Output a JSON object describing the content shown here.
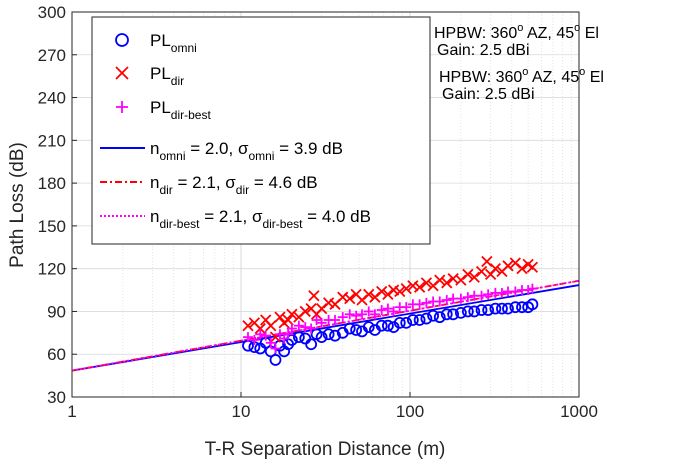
{
  "chart_data": {
    "type": "scatter",
    "xlabel": "T-R Separation Distance (m)",
    "ylabel": "Path Loss (dB)",
    "xscale": "log",
    "xlim": [
      1,
      1000
    ],
    "ylim": [
      30,
      300
    ],
    "xticks": [
      1,
      10,
      100,
      1000
    ],
    "xtick_labels": [
      "1",
      "10",
      "100",
      "1000"
    ],
    "yticks": [
      30,
      60,
      90,
      120,
      150,
      180,
      210,
      240,
      270,
      300
    ],
    "ytick_labels": [
      "30",
      "60",
      "90",
      "120",
      "150",
      "180",
      "210",
      "240",
      "270",
      "300"
    ],
    "grid": "on (with minor log grid)",
    "legend_placement": "top-left",
    "colors": {
      "omni": "#0000ff",
      "dir": "#ff0000",
      "dir_best": "#ff00ff",
      "axis": "#262626",
      "grid": "#d9d9d9"
    },
    "series": [
      {
        "name": "PL_omni",
        "marker": "o",
        "color": "#0000ff",
        "points": [
          [
            11,
            66
          ],
          [
            12,
            65
          ],
          [
            13,
            64
          ],
          [
            14,
            68
          ],
          [
            15,
            62
          ],
          [
            16,
            56
          ],
          [
            17,
            66
          ],
          [
            18,
            62
          ],
          [
            19,
            67
          ],
          [
            20,
            70
          ],
          [
            22,
            72
          ],
          [
            24,
            71
          ],
          [
            26,
            67
          ],
          [
            28,
            74
          ],
          [
            30,
            72
          ],
          [
            33,
            74
          ],
          [
            36,
            73
          ],
          [
            40,
            75
          ],
          [
            44,
            78
          ],
          [
            48,
            77
          ],
          [
            52,
            76
          ],
          [
            57,
            79
          ],
          [
            62,
            77
          ],
          [
            68,
            80
          ],
          [
            74,
            80
          ],
          [
            80,
            79
          ],
          [
            87,
            82
          ],
          [
            95,
            82
          ],
          [
            104,
            84
          ],
          [
            114,
            84
          ],
          [
            125,
            85
          ],
          [
            137,
            87
          ],
          [
            150,
            86
          ],
          [
            165,
            88
          ],
          [
            180,
            88
          ],
          [
            200,
            89
          ],
          [
            220,
            90
          ],
          [
            240,
            90
          ],
          [
            265,
            91
          ],
          [
            290,
            91
          ],
          [
            320,
            92
          ],
          [
            350,
            92
          ],
          [
            380,
            92
          ],
          [
            420,
            93
          ],
          [
            460,
            93
          ],
          [
            500,
            93
          ],
          [
            530,
            95
          ]
        ]
      },
      {
        "name": "PL_dir",
        "marker": "x",
        "color": "#ff0000",
        "points": [
          [
            11,
            80
          ],
          [
            12,
            82
          ],
          [
            13,
            78
          ],
          [
            14,
            84
          ],
          [
            15,
            80
          ],
          [
            16,
            72
          ],
          [
            17,
            86
          ],
          [
            18,
            82
          ],
          [
            19,
            84
          ],
          [
            20,
            88
          ],
          [
            22,
            86
          ],
          [
            24,
            90
          ],
          [
            26,
            92
          ],
          [
            27,
            101
          ],
          [
            28,
            88
          ],
          [
            30,
            92
          ],
          [
            33,
            96
          ],
          [
            36,
            95
          ],
          [
            40,
            100
          ],
          [
            44,
            99
          ],
          [
            48,
            102
          ],
          [
            52,
            98
          ],
          [
            57,
            102
          ],
          [
            62,
            100
          ],
          [
            68,
            104
          ],
          [
            74,
            102
          ],
          [
            80,
            105
          ],
          [
            87,
            104
          ],
          [
            95,
            106
          ],
          [
            104,
            108
          ],
          [
            114,
            107
          ],
          [
            125,
            110
          ],
          [
            137,
            108
          ],
          [
            150,
            112
          ],
          [
            165,
            110
          ],
          [
            180,
            113
          ],
          [
            200,
            112
          ],
          [
            220,
            116
          ],
          [
            240,
            114
          ],
          [
            265,
            118
          ],
          [
            285,
            125
          ],
          [
            300,
            116
          ],
          [
            320,
            120
          ],
          [
            350,
            118
          ],
          [
            380,
            122
          ],
          [
            420,
            124
          ],
          [
            460,
            120
          ],
          [
            500,
            123
          ],
          [
            530,
            121
          ]
        ]
      },
      {
        "name": "PL_dir-best",
        "marker": "+",
        "color": "#ff00ff",
        "points": [
          [
            11,
            72
          ],
          [
            12,
            70
          ],
          [
            13,
            74
          ],
          [
            14,
            73
          ],
          [
            15,
            68
          ],
          [
            16,
            64
          ],
          [
            17,
            74
          ],
          [
            18,
            71
          ],
          [
            19,
            74
          ],
          [
            20,
            78
          ],
          [
            22,
            80
          ],
          [
            24,
            79
          ],
          [
            26,
            78
          ],
          [
            28,
            84
          ],
          [
            30,
            82
          ],
          [
            33,
            84
          ],
          [
            36,
            84
          ],
          [
            40,
            86
          ],
          [
            44,
            88
          ],
          [
            48,
            87
          ],
          [
            52,
            88
          ],
          [
            57,
            90
          ],
          [
            62,
            88
          ],
          [
            68,
            91
          ],
          [
            74,
            92
          ],
          [
            80,
            90
          ],
          [
            87,
            93
          ],
          [
            95,
            93
          ],
          [
            104,
            95
          ],
          [
            114,
            95
          ],
          [
            125,
            96
          ],
          [
            137,
            97
          ],
          [
            150,
            97
          ],
          [
            165,
            98
          ],
          [
            180,
            99
          ],
          [
            200,
            99
          ],
          [
            220,
            100
          ],
          [
            240,
            101
          ],
          [
            265,
            101
          ],
          [
            290,
            102
          ],
          [
            320,
            103
          ],
          [
            350,
            103
          ],
          [
            380,
            104
          ],
          [
            420,
            104
          ],
          [
            460,
            105
          ],
          [
            500,
            105
          ],
          [
            530,
            106
          ]
        ]
      },
      {
        "name": "n_omni fit",
        "line": "solid",
        "color": "#0000ff",
        "fit_points": [
          [
            1,
            48.5
          ],
          [
            1000,
            108.5
          ]
        ]
      },
      {
        "name": "n_dir fit",
        "line": "dashdot",
        "color": "#ff0000",
        "fit_points": [
          [
            1,
            48.5
          ],
          [
            1000,
            111.5
          ]
        ]
      },
      {
        "name": "n_dir-best fit",
        "line": "dotted",
        "color": "#ff00ff",
        "fit_points": [
          [
            1,
            48.5
          ],
          [
            1000,
            111.5
          ]
        ]
      }
    ],
    "legend": [
      {
        "main": "PL",
        "sub": "omni",
        "marker": "o",
        "color": "#0000ff"
      },
      {
        "main": "PL",
        "sub": "dir",
        "marker": "x",
        "color": "#ff0000"
      },
      {
        "main": "PL",
        "sub": "dir-best",
        "marker": "+",
        "color": "#ff00ff"
      },
      {
        "line": "solid",
        "color": "#0000ff",
        "parts": [
          [
            "n",
            "omni"
          ],
          [
            " = 2.0, ",
            ""
          ],
          [
            "σ",
            "omni"
          ],
          [
            " = 3.9 dB",
            ""
          ]
        ]
      },
      {
        "line": "dashdot",
        "color": "#ff0000",
        "parts": [
          [
            "n",
            "dir"
          ],
          [
            " = 2.1, ",
            ""
          ],
          [
            "σ",
            "dir"
          ],
          [
            " = 4.6 dB",
            ""
          ]
        ]
      },
      {
        "line": "dotted",
        "color": "#ff00ff",
        "parts": [
          [
            "n",
            "dir-best"
          ],
          [
            " = 2.1, ",
            ""
          ],
          [
            "σ",
            "dir-best"
          ],
          [
            " = 4.0 dB",
            ""
          ]
        ]
      }
    ],
    "annotations": [
      {
        "line1": "HPBW: 360",
        "sup1": "o",
        "mid1": " AZ, 45",
        "sup2": "o",
        "end1": " El",
        "line2": "Gain: 2.5 dBi"
      },
      {
        "line1": "HPBW: 360",
        "sup1": "o",
        "mid1": " AZ, 45",
        "sup2": "o",
        "end1": " El",
        "line2": "Gain: 2.5 dBi"
      }
    ]
  }
}
